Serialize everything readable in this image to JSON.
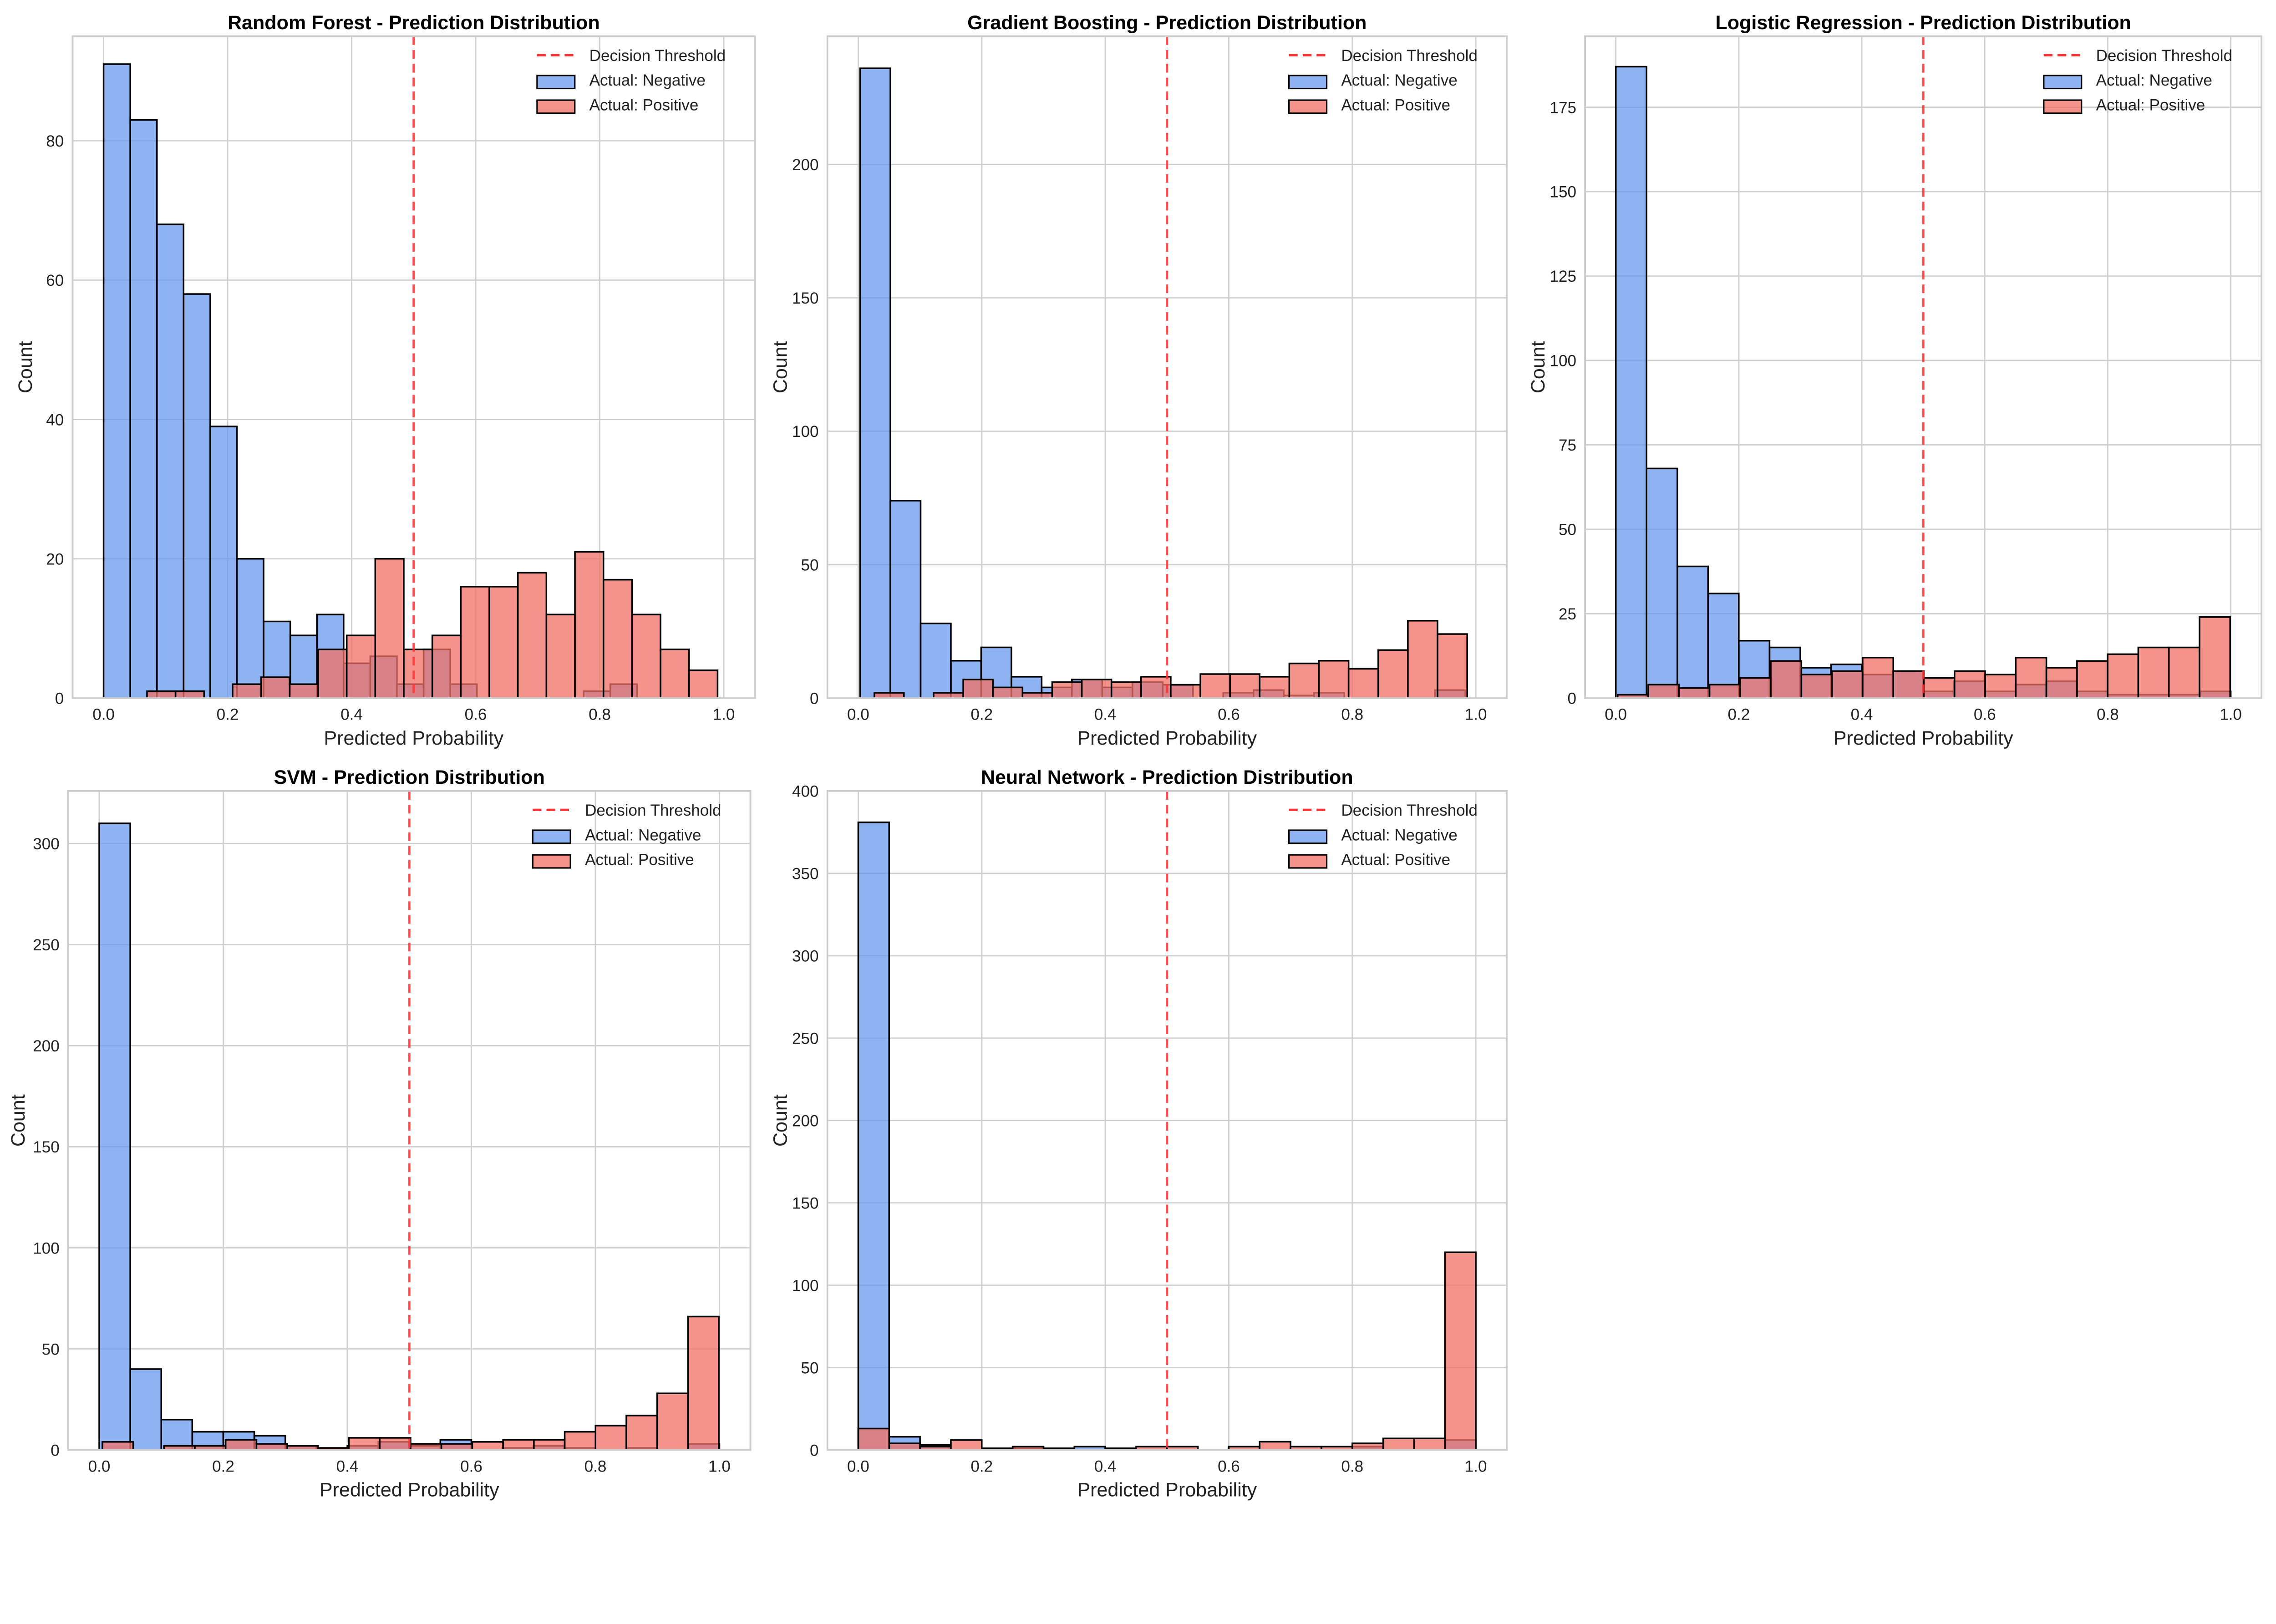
{
  "colors": {
    "negative": "#6495ED",
    "positive": "#F07166",
    "threshold": "#FF3333",
    "edge": "#000000"
  },
  "chart_data": [
    {
      "type": "bar",
      "title": "Random Forest - Prediction Distribution",
      "xlabel": "Predicted Probability",
      "ylabel": "Count",
      "xlim": [
        -0.05,
        1.05
      ],
      "ylim": [
        0,
        95
      ],
      "xticks": [
        0.0,
        0.2,
        0.4,
        0.6,
        0.8,
        1.0
      ],
      "yticks": [
        0,
        20,
        40,
        60,
        80
      ],
      "grid": true,
      "legend_position": "top-right",
      "threshold": 0.5,
      "legend": [
        "Decision Threshold",
        "Actual: Negative",
        "Actual: Positive"
      ],
      "series": [
        {
          "name": "Actual: Negative",
          "bin_start": 0.0,
          "bin_width": 0.043,
          "values": [
            91,
            83,
            68,
            58,
            39,
            20,
            11,
            9,
            12,
            5,
            6,
            2,
            7,
            2,
            0,
            0,
            0,
            0,
            1,
            2
          ]
        },
        {
          "name": "Actual: Positive",
          "bin_start": 0.07,
          "bin_width": 0.046,
          "values": [
            1,
            1,
            0,
            2,
            3,
            2,
            7,
            9,
            20,
            7,
            9,
            16,
            16,
            18,
            12,
            21,
            17,
            12,
            7,
            4
          ]
        }
      ]
    },
    {
      "type": "bar",
      "title": "Gradient Boosting - Prediction Distribution",
      "xlabel": "Predicted Probability",
      "ylabel": "Count",
      "xlim": [
        -0.05,
        1.05
      ],
      "ylim": [
        0,
        248
      ],
      "xticks": [
        0.0,
        0.2,
        0.4,
        0.6,
        0.8,
        1.0
      ],
      "yticks": [
        0,
        50,
        100,
        150,
        200
      ],
      "grid": true,
      "legend_position": "top-right",
      "threshold": 0.5,
      "legend": [
        "Decision Threshold",
        "Actual: Negative",
        "Actual: Positive"
      ],
      "series": [
        {
          "name": "Actual: Negative",
          "bin_start": 0.003,
          "bin_width": 0.049,
          "values": [
            236,
            74,
            28,
            14,
            19,
            8,
            4,
            7,
            4,
            6,
            5,
            0,
            2,
            3,
            1,
            2,
            0,
            0,
            0,
            3
          ]
        },
        {
          "name": "Actual: Positive",
          "bin_start": 0.026,
          "bin_width": 0.048,
          "values": [
            2,
            0,
            2,
            7,
            4,
            2,
            6,
            7,
            6,
            8,
            5,
            9,
            9,
            8,
            13,
            14,
            11,
            18,
            29,
            24
          ]
        }
      ]
    },
    {
      "type": "bar",
      "title": "Logistic Regression - Prediction Distribution",
      "xlabel": "Predicted Probability",
      "ylabel": "Count",
      "xlim": [
        -0.05,
        1.05
      ],
      "ylim": [
        0,
        196
      ],
      "xticks": [
        0.0,
        0.2,
        0.4,
        0.6,
        0.8,
        1.0
      ],
      "yticks": [
        0,
        25,
        50,
        75,
        100,
        125,
        150,
        175
      ],
      "grid": true,
      "legend_position": "top-right",
      "threshold": 0.5,
      "legend": [
        "Decision Threshold",
        "Actual: Negative",
        "Actual: Positive"
      ],
      "series": [
        {
          "name": "Actual: Negative",
          "bin_start": 0.0,
          "bin_width": 0.05,
          "values": [
            187,
            68,
            39,
            31,
            17,
            15,
            9,
            10,
            7,
            8,
            2,
            5,
            2,
            4,
            5,
            2,
            1,
            1,
            1,
            2
          ]
        },
        {
          "name": "Actual: Positive",
          "bin_start": 0.003,
          "bin_width": 0.0498,
          "values": [
            1,
            4,
            3,
            4,
            6,
            11,
            7,
            8,
            12,
            8,
            6,
            8,
            7,
            12,
            9,
            11,
            13,
            15,
            15,
            24
          ]
        }
      ]
    },
    {
      "type": "bar",
      "title": "SVM - Prediction Distribution",
      "xlabel": "Predicted Probability",
      "ylabel": "Count",
      "xlim": [
        -0.05,
        1.05
      ],
      "ylim": [
        0,
        326
      ],
      "xticks": [
        0.0,
        0.2,
        0.4,
        0.6,
        0.8,
        1.0
      ],
      "yticks": [
        0,
        50,
        100,
        150,
        200,
        250,
        300
      ],
      "grid": true,
      "legend_position": "top-right",
      "threshold": 0.5,
      "legend": [
        "Decision Threshold",
        "Actual: Negative",
        "Actual: Positive"
      ],
      "series": [
        {
          "name": "Actual: Negative",
          "bin_start": 0.0,
          "bin_width": 0.05,
          "values": [
            310,
            40,
            15,
            9,
            9,
            7,
            2,
            1,
            2,
            4,
            2,
            5,
            0,
            1,
            2,
            1,
            0,
            1,
            0,
            3
          ]
        },
        {
          "name": "Actual: Positive",
          "bin_start": 0.005,
          "bin_width": 0.0497,
          "values": [
            4,
            0,
            2,
            2,
            5,
            3,
            2,
            1,
            6,
            6,
            3,
            3,
            4,
            5,
            5,
            9,
            12,
            17,
            28,
            66
          ]
        }
      ]
    },
    {
      "type": "bar",
      "title": "Neural Network - Prediction Distribution",
      "xlabel": "Predicted Probability",
      "ylabel": "Count",
      "xlim": [
        -0.05,
        1.05
      ],
      "ylim": [
        0,
        400
      ],
      "xticks": [
        0.0,
        0.2,
        0.4,
        0.6,
        0.8,
        1.0
      ],
      "yticks": [
        0,
        50,
        100,
        150,
        200,
        250,
        300,
        350,
        400
      ],
      "grid": true,
      "legend_position": "top-right",
      "threshold": 0.5,
      "legend": [
        "Decision Threshold",
        "Actual: Negative",
        "Actual: Positive"
      ],
      "series": [
        {
          "name": "Actual: Negative",
          "bin_start": 0.0,
          "bin_width": 0.05,
          "values": [
            381,
            8,
            3,
            0,
            1,
            1,
            1,
            2,
            1,
            0,
            0,
            0,
            0,
            0,
            0,
            0,
            2,
            0,
            0,
            6
          ]
        },
        {
          "name": "Actual: Positive",
          "bin_start": 0.0,
          "bin_width": 0.05,
          "values": [
            13,
            4,
            2,
            6,
            0,
            2,
            0,
            0,
            0,
            2,
            2,
            0,
            2,
            5,
            2,
            2,
            4,
            7,
            7,
            120
          ]
        }
      ]
    }
  ]
}
